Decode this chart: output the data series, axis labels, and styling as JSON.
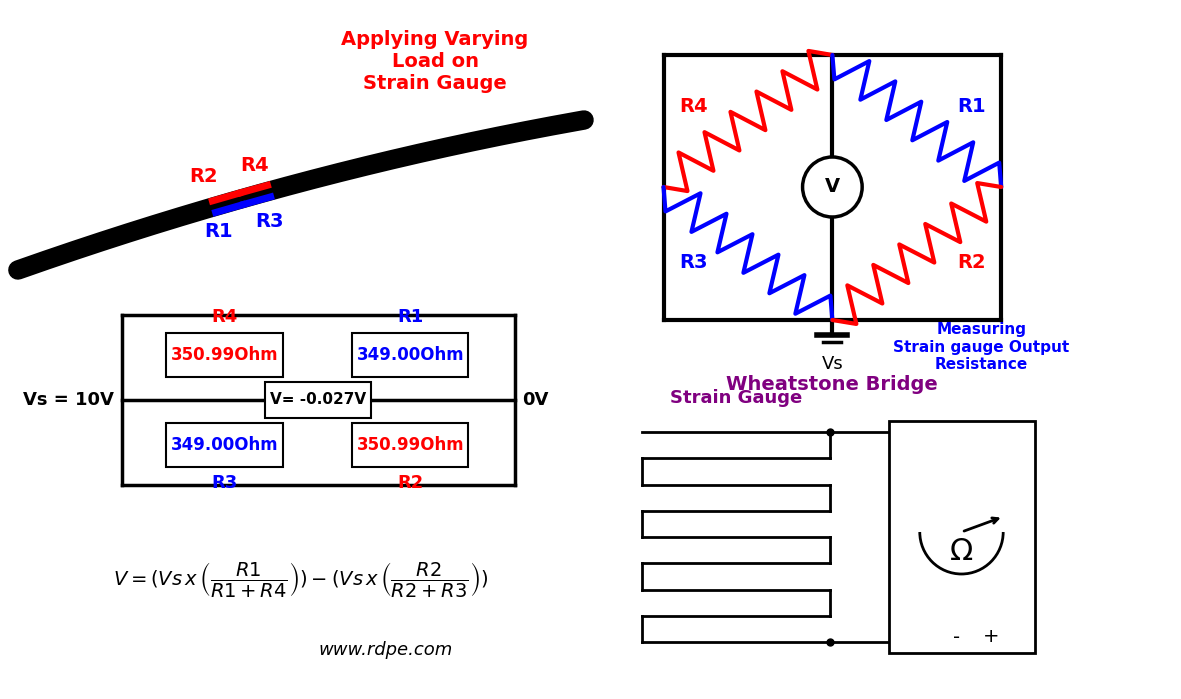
{
  "bg_color": "#ffffff",
  "red": "#ff0000",
  "blue": "#0000ff",
  "black": "#000000",
  "purple": "#800080",
  "wheatstone_label": "Wheatstone Bridge",
  "strain_gauge_label": "Strain Gauge",
  "measuring_label": "Measuring\nStrain gauge Output\nResistance",
  "applying_label": "Applying Varying\nLoad on\nStrain Gauge",
  "website": "www.rdpe.com",
  "R1_val": "349.00Ohm",
  "R2_val": "350.99Ohm",
  "R3_val": "349.00Ohm",
  "R4_val": "350.99Ohm",
  "V_val": "V= -0.027V",
  "Vs_val": "Vs = 10V",
  "zero_v": "0V",
  "Vs_label": "Vs"
}
